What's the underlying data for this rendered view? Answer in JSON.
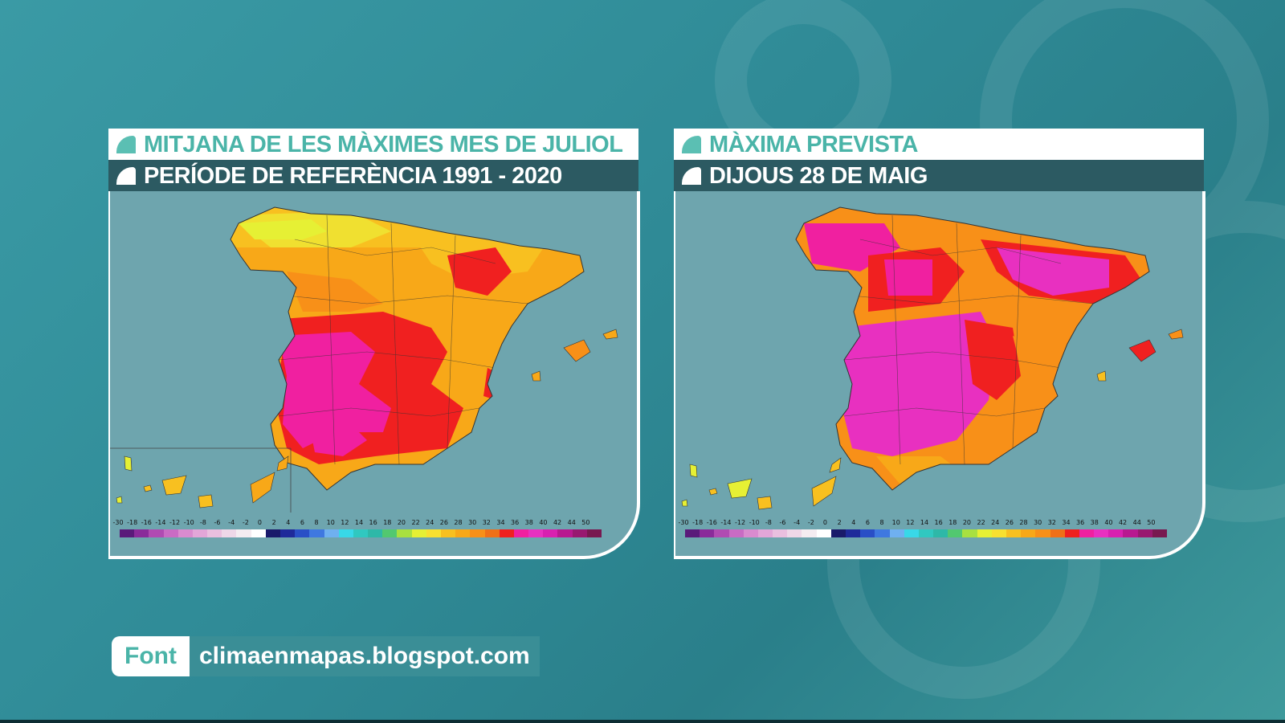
{
  "panels": [
    {
      "title": "MITJANA DE LES MÀXIMES MES DE JULIOL",
      "subtitle": "PERÍODE DE REFERÈNCIA 1991 - 2020"
    },
    {
      "title": "MÀXIMA PREVISTA",
      "subtitle": "DIJOUS 28 DE MAIG"
    }
  ],
  "legend": {
    "labels": [
      "-30",
      "-18",
      "-16",
      "-14",
      "-12",
      "-10",
      "-8",
      "-6",
      "-4",
      "-2",
      "0",
      "2",
      "4",
      "6",
      "8",
      "10",
      "12",
      "14",
      "16",
      "18",
      "20",
      "22",
      "24",
      "26",
      "28",
      "30",
      "32",
      "34",
      "36",
      "38",
      "40",
      "42",
      "44",
      "50"
    ],
    "colors": [
      "#5a1a7a",
      "#8a2b9a",
      "#b04bb2",
      "#c96bc4",
      "#d98bcf",
      "#e2a6d8",
      "#e9bfdf",
      "#eed7e8",
      "#f4ecf1",
      "#ffffff",
      "#1a1a6a",
      "#1f2a9a",
      "#2a4fc6",
      "#3f78e0",
      "#6fb0f0",
      "#38d8e8",
      "#30c8c0",
      "#2eb8a8",
      "#52c870",
      "#a8e040",
      "#e6f034",
      "#f8e030",
      "#f8c020",
      "#f8a818",
      "#f89018",
      "#f07018",
      "#f02020",
      "#f020a0",
      "#e830c0",
      "#d820b0",
      "#b81890",
      "#981870",
      "#781850"
    ]
  },
  "source": {
    "label": "Font",
    "url": "climaenmapas.blogspot.com"
  },
  "colors": {
    "background": "#2f8a96",
    "header_dark": "#2c5a62",
    "accent": "#4ab4a8",
    "sea": "#6ea5ae"
  }
}
